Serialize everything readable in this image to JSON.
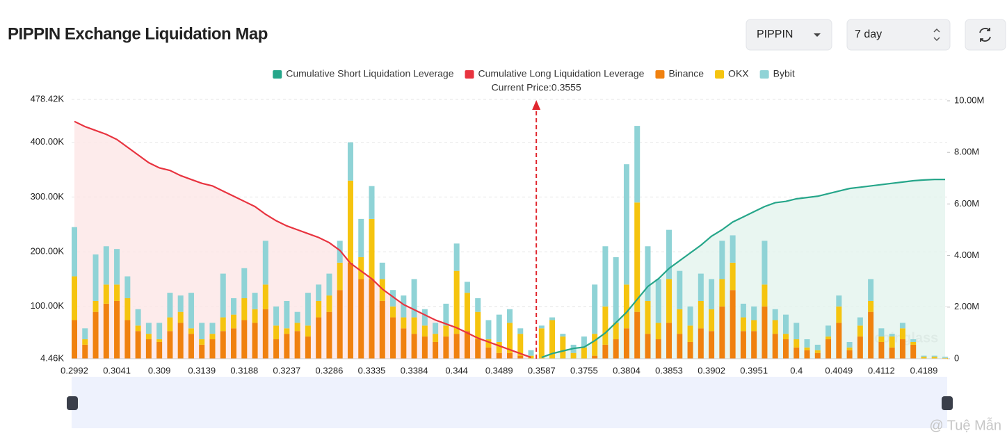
{
  "header": {
    "title": "PIPPIN Exchange Liquidation Map",
    "symbol_select": "PIPPIN",
    "period_select": "7 day"
  },
  "watermark": "coinglass",
  "credit": "@ Tuệ Mẫn",
  "chart_data": {
    "type": "bar",
    "stacked": true,
    "grid": true,
    "annotation": "Current Price:0.3555",
    "categories": [
      "0.2992",
      null,
      null,
      null,
      "0.3041",
      null,
      null,
      null,
      "0.309",
      null,
      null,
      null,
      "0.3139",
      null,
      null,
      null,
      "0.3188",
      null,
      null,
      null,
      "0.3237",
      null,
      null,
      null,
      "0.3286",
      null,
      null,
      null,
      "0.3335",
      null,
      null,
      null,
      "0.3384",
      null,
      null,
      null,
      "0.344",
      null,
      null,
      null,
      "0.3489",
      null,
      null,
      null,
      "0.3587",
      null,
      null,
      null,
      "0.3755",
      null,
      null,
      null,
      "0.3804",
      null,
      null,
      null,
      "0.3853",
      null,
      null,
      null,
      "0.3902",
      null,
      null,
      null,
      "0.3951",
      null,
      null,
      null,
      "0.4",
      null,
      null,
      null,
      "0.4049",
      null,
      null,
      null,
      "0.4112",
      null,
      null,
      null,
      "0.4189",
      null,
      null
    ],
    "ylim": [
      4460,
      478420
    ],
    "yticks": [
      {
        "value": 4460,
        "label": "4.46K"
      },
      {
        "value": 100000,
        "label": "100.00K"
      },
      {
        "value": 200000,
        "label": "200.00K"
      },
      {
        "value": 300000,
        "label": "300.00K"
      },
      {
        "value": 400000,
        "label": "400.00K"
      },
      {
        "value": 478420,
        "label": "478.42K"
      }
    ],
    "y2lim": [
      0,
      10000000
    ],
    "y2ticks": [
      0,
      {
        "value": 2000000,
        "label": "2.00M"
      },
      {
        "value": 4000000,
        "label": "4.00M"
      },
      {
        "value": 6000000,
        "label": "6.00M"
      },
      {
        "value": 8000000,
        "label": "8.00M"
      },
      {
        "value": 10000000,
        "label": "10.00M"
      }
    ],
    "series": [
      {
        "name": "Cumulative Short Liquidation Leverage",
        "type": "line",
        "axis": "y2",
        "color": "#26a68a",
        "fill": "#e3f4ee",
        "values": [
          null,
          null,
          null,
          null,
          null,
          null,
          null,
          null,
          null,
          null,
          null,
          null,
          null,
          null,
          null,
          null,
          null,
          null,
          null,
          null,
          null,
          null,
          null,
          null,
          null,
          null,
          null,
          null,
          null,
          null,
          null,
          null,
          null,
          null,
          null,
          null,
          null,
          null,
          null,
          null,
          null,
          null,
          null,
          null,
          50000,
          200000,
          300000,
          400000,
          450000,
          700000,
          1000000,
          1400000,
          1800000,
          2300000,
          2800000,
          3100000,
          3500000,
          3800000,
          4100000,
          4400000,
          4750000,
          5000000,
          5300000,
          5500000,
          5700000,
          5900000,
          6050000,
          6100000,
          6200000,
          6250000,
          6300000,
          6400000,
          6500000,
          6600000,
          6650000,
          6700000,
          6750000,
          6800000,
          6850000,
          6900000,
          6930000,
          6950000,
          6950000
        ]
      },
      {
        "name": "Cumulative Long Liquidation Leverage",
        "type": "line",
        "axis": "y2",
        "color": "#e8333f",
        "fill": "#fde6e6",
        "values": [
          9200000,
          9000000,
          8850000,
          8700000,
          8500000,
          8200000,
          7900000,
          7600000,
          7400000,
          7300000,
          7100000,
          6950000,
          6800000,
          6700000,
          6500000,
          6300000,
          6100000,
          5900000,
          5600000,
          5350000,
          5150000,
          5000000,
          4850000,
          4700000,
          4500000,
          4200000,
          3700000,
          3400000,
          3100000,
          2700000,
          2400000,
          2100000,
          1900000,
          1700000,
          1500000,
          1350000,
          1200000,
          1000000,
          800000,
          650000,
          500000,
          350000,
          200000,
          50000,
          null,
          null,
          null,
          null,
          null,
          null,
          null,
          null,
          null,
          null,
          null,
          null,
          null,
          null,
          null,
          null,
          null,
          null,
          null,
          null,
          null,
          null,
          null,
          null,
          null,
          null,
          null,
          null,
          null,
          null,
          null,
          null,
          null,
          null,
          null,
          null,
          null,
          null,
          null
        ]
      },
      {
        "name": "Binance",
        "color": "#f0810f",
        "values": [
          75000,
          30000,
          90000,
          105000,
          110000,
          75000,
          55000,
          40000,
          35000,
          55000,
          70000,
          50000,
          30000,
          40000,
          55000,
          60000,
          75000,
          70000,
          95000,
          40000,
          50000,
          55000,
          45000,
          80000,
          90000,
          130000,
          180000,
          150000,
          150000,
          110000,
          80000,
          60000,
          50000,
          45000,
          35000,
          45000,
          50000,
          55000,
          40000,
          25000,
          15000,
          15000,
          10000,
          5000,
          5000,
          5000,
          5000,
          5000,
          5000,
          10000,
          30000,
          40000,
          60000,
          90000,
          50000,
          40000,
          70000,
          50000,
          35000,
          60000,
          55000,
          100000,
          130000,
          55000,
          55000,
          100000,
          50000,
          40000,
          25000,
          20000,
          15000,
          40000,
          70000,
          20000,
          45000,
          90000,
          35000,
          25000,
          40000,
          30000,
          5000,
          5000,
          4000
        ]
      },
      {
        "name": "OKX",
        "color": "#f5c40f",
        "values": [
          80000,
          10000,
          20000,
          35000,
          30000,
          40000,
          10000,
          10000,
          5000,
          25000,
          20000,
          10000,
          10000,
          10000,
          25000,
          25000,
          40000,
          25000,
          45000,
          25000,
          10000,
          15000,
          20000,
          30000,
          30000,
          50000,
          150000,
          40000,
          110000,
          40000,
          20000,
          20000,
          30000,
          20000,
          15000,
          20000,
          115000,
          70000,
          50000,
          15000,
          20000,
          55000,
          40000,
          5000,
          55000,
          70000,
          40000,
          10000,
          20000,
          40000,
          70000,
          30000,
          80000,
          200000,
          60000,
          30000,
          80000,
          45000,
          30000,
          50000,
          40000,
          50000,
          50000,
          25000,
          20000,
          40000,
          25000,
          10000,
          15000,
          5000,
          5000,
          5000,
          30000,
          5000,
          20000,
          20000,
          10000,
          20000,
          20000,
          5000,
          3000,
          3000,
          2000
        ]
      },
      {
        "name": "Bybit",
        "color": "#8fd3d6",
        "values": [
          90000,
          20000,
          85000,
          70000,
          65000,
          40000,
          30000,
          20000,
          30000,
          45000,
          30000,
          65000,
          30000,
          20000,
          80000,
          30000,
          55000,
          30000,
          80000,
          35000,
          50000,
          20000,
          60000,
          30000,
          40000,
          40000,
          70000,
          70000,
          60000,
          30000,
          30000,
          40000,
          70000,
          30000,
          20000,
          40000,
          50000,
          20000,
          25000,
          35000,
          50000,
          25000,
          10000,
          10000,
          5000,
          5000,
          5000,
          15000,
          20000,
          90000,
          110000,
          120000,
          220000,
          140000,
          100000,
          80000,
          90000,
          70000,
          35000,
          50000,
          55000,
          70000,
          50000,
          25000,
          25000,
          80000,
          20000,
          35000,
          30000,
          15000,
          10000,
          20000,
          20000,
          10000,
          15000,
          40000,
          15000,
          5000,
          10000,
          5000,
          2000,
          2000,
          2000
        ]
      }
    ]
  }
}
